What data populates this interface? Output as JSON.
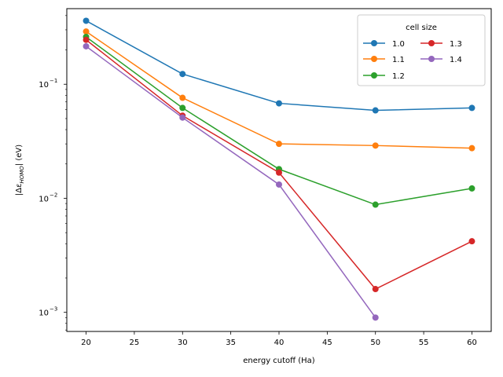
{
  "chart_data": {
    "type": "line",
    "title": "",
    "xlabel": "energy cutoff (Ha)",
    "ylabel_main": "|Δε",
    "ylabel_sub": "HOMO",
    "ylabel_tail": "| (eV)",
    "x_scale": "linear",
    "y_scale": "log",
    "xlim": [
      18,
      62
    ],
    "ylim": [
      0.00068,
      0.46
    ],
    "x_ticks": [
      20,
      25,
      30,
      35,
      40,
      45,
      50,
      55,
      60
    ],
    "x_tick_labels": [
      "20",
      "25",
      "30",
      "35",
      "40",
      "45",
      "50",
      "55",
      "60"
    ],
    "y_ticks": [
      0.001,
      0.01,
      0.1
    ],
    "y_tick_base": "10",
    "y_tick_exponents": [
      "−3",
      "−2",
      "−1"
    ],
    "grid": false,
    "legend": {
      "title": "cell size",
      "placement": "upper right",
      "columns": 2
    },
    "series": [
      {
        "name": "1.0",
        "color": "#1f77b4",
        "x": [
          20,
          30,
          40,
          50,
          60
        ],
        "y": [
          0.36,
          0.123,
          0.068,
          0.059,
          0.062
        ]
      },
      {
        "name": "1.1",
        "color": "#ff7f0e",
        "x": [
          20,
          30,
          40,
          50,
          60
        ],
        "y": [
          0.29,
          0.076,
          0.03,
          0.029,
          0.0275
        ]
      },
      {
        "name": "1.2",
        "color": "#2ca02c",
        "x": [
          20,
          30,
          40,
          50,
          60
        ],
        "y": [
          0.26,
          0.062,
          0.018,
          0.0088,
          0.0122
        ]
      },
      {
        "name": "1.3",
        "color": "#d62728",
        "x": [
          20,
          30,
          40,
          50,
          60
        ],
        "y": [
          0.245,
          0.053,
          0.0168,
          0.0016,
          0.0042
        ]
      },
      {
        "name": "1.4",
        "color": "#9467bd",
        "x": [
          20,
          30,
          40,
          50
        ],
        "y": [
          0.215,
          0.051,
          0.0132,
          0.0009
        ]
      }
    ]
  }
}
